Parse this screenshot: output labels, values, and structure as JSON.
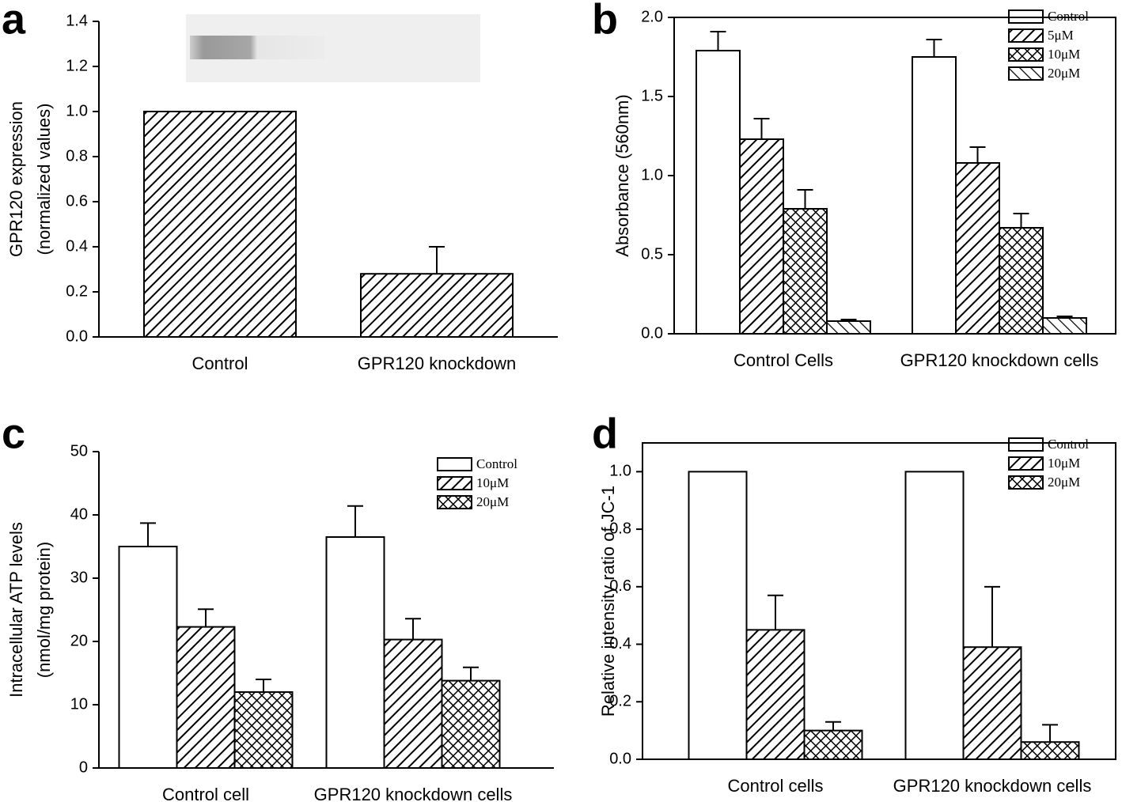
{
  "chart_data": [
    {
      "type": "bar",
      "panel": "a",
      "ylabel": [
        "GPR120 expression",
        "(normalized values)"
      ],
      "categories": [
        "Control",
        "GPR120 knockdown"
      ],
      "series": [
        {
          "color": "#000000",
          "pattern": "hatch",
          "values": [
            1.0,
            0.28
          ],
          "errors": [
            null,
            0.12
          ]
        }
      ],
      "ylim": [
        0,
        1.4
      ],
      "yticks": [
        {
          "value": 0,
          "label": "0.0"
        },
        0.2,
        0.4,
        0.6,
        0.8,
        {
          "value": 1,
          "label": "1.0"
        },
        1.2,
        1.4
      ],
      "frame": "axes"
    },
    {
      "type": "bar",
      "panel": "b",
      "ylabel": [
        "Absorbance (560nm)"
      ],
      "categories": [
        "Control Cells",
        "GPR120 knockdown cells"
      ],
      "series": [
        {
          "name": "Control",
          "color": "#000000",
          "pattern": "none",
          "values": [
            1.79,
            1.75
          ],
          "errors": [
            0.12,
            0.11
          ]
        },
        {
          "name": "5μM",
          "color": "#000000",
          "pattern": "hatch",
          "values": [
            1.23,
            1.08
          ],
          "errors": [
            0.13,
            0.1
          ]
        },
        {
          "name": "10μM",
          "color": "#000000",
          "pattern": "cross",
          "values": [
            0.79,
            0.67
          ],
          "errors": [
            0.12,
            0.09
          ]
        },
        {
          "name": "20μM",
          "color": "#000000",
          "pattern": "back",
          "values": [
            0.08,
            0.1
          ],
          "errors": [
            0.01,
            0.01
          ]
        }
      ],
      "ylim": [
        0,
        2.0
      ],
      "yticks": [
        {
          "value": 0,
          "label": "0.0"
        },
        0.5,
        {
          "value": 1,
          "label": "1.0"
        },
        1.5,
        {
          "value": 2,
          "label": "2.0"
        }
      ],
      "frame": "box",
      "legend": "top-right"
    },
    {
      "type": "bar",
      "panel": "c",
      "ylabel": [
        "Intracellular ATP levels",
        "(nmol/mg protein)"
      ],
      "categories": [
        "Control cell",
        "GPR120 knockdown cells"
      ],
      "series": [
        {
          "name": "Control",
          "color": "#000000",
          "pattern": "none",
          "values": [
            35,
            36.5
          ],
          "errors": [
            3.7,
            4.9
          ]
        },
        {
          "name": "10μM",
          "color": "#000000",
          "pattern": "hatch",
          "values": [
            22.3,
            20.3
          ],
          "errors": [
            2.8,
            3.3
          ]
        },
        {
          "name": "20μM",
          "color": "#000000",
          "pattern": "cross",
          "values": [
            12,
            13.8
          ],
          "errors": [
            2.0,
            2.1
          ]
        }
      ],
      "ylim": [
        0,
        50
      ],
      "yticks": [
        0,
        10,
        20,
        30,
        40,
        50
      ],
      "frame": "axes",
      "legend": "top-right"
    },
    {
      "type": "bar",
      "panel": "d",
      "ylabel": [
        "Relative intensity ratio of JC-1"
      ],
      "categories": [
        "Control cells",
        "GPR120 knockdown cells"
      ],
      "series": [
        {
          "name": "Control",
          "color": "#000000",
          "pattern": "none",
          "values": [
            1.0,
            1.0
          ],
          "errors": [
            null,
            null
          ]
        },
        {
          "name": "10μM",
          "color": "#000000",
          "pattern": "hatch",
          "values": [
            0.45,
            0.39
          ],
          "errors": [
            0.12,
            0.21
          ]
        },
        {
          "name": "20μM",
          "color": "#000000",
          "pattern": "cross",
          "values": [
            0.1,
            0.06
          ],
          "errors": [
            0.03,
            0.06
          ]
        }
      ],
      "ylim": [
        0,
        1.1
      ],
      "yticks": [
        {
          "value": 0,
          "label": "0.0"
        },
        0.2,
        0.4,
        0.6,
        0.8,
        {
          "value": 1,
          "label": "1.0"
        }
      ],
      "frame": "box",
      "legend": "top-right"
    }
  ]
}
